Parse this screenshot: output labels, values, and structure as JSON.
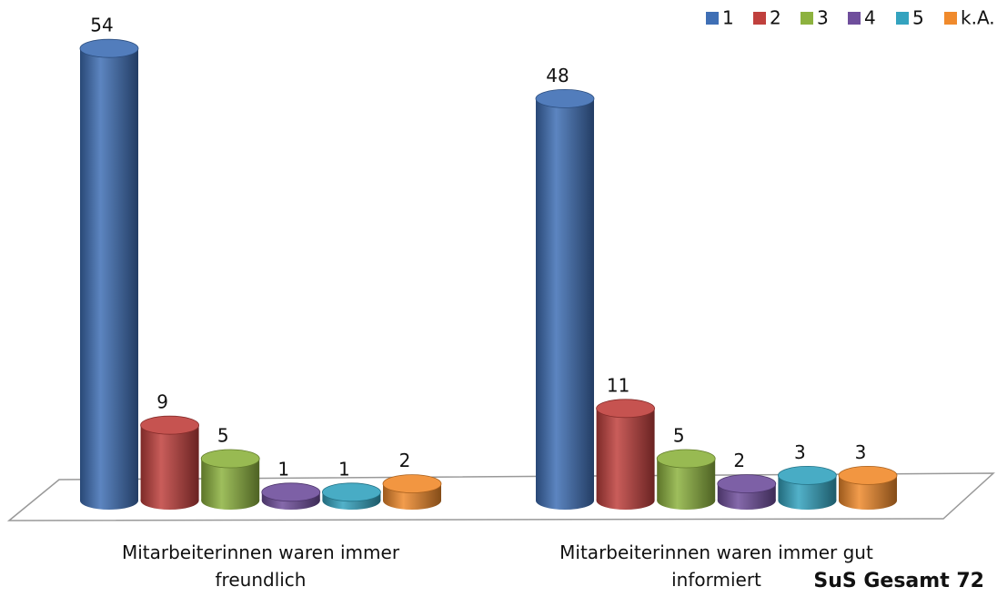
{
  "chart_data": {
    "type": "bar",
    "annotation": "SuS Gesamt 72",
    "categories": [
      "Mitarbeiterinnen waren immer freundlich",
      "Mitarbeiterinnen waren immer gut informiert"
    ],
    "series": [
      {
        "name": "1",
        "color": "#3f6fb5",
        "values": [
          54,
          48
        ]
      },
      {
        "name": "2",
        "color": "#c0403d",
        "values": [
          9,
          11
        ]
      },
      {
        "name": "3",
        "color": "#8db23f",
        "values": [
          5,
          5
        ]
      },
      {
        "name": "4",
        "color": "#6f4e9c",
        "values": [
          1,
          2
        ]
      },
      {
        "name": "5",
        "color": "#34a3bf",
        "values": [
          1,
          3
        ]
      },
      {
        "name": "k.A.",
        "color": "#f08a2c",
        "values": [
          2,
          3
        ]
      }
    ],
    "legend": "top-right"
  }
}
